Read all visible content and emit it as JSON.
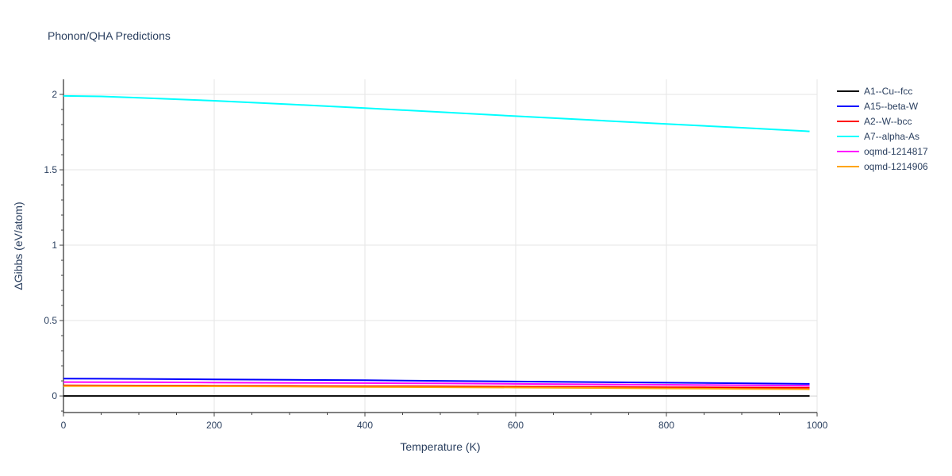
{
  "chart_data": {
    "type": "line",
    "title": "Phonon/QHA Predictions",
    "xlabel": "Temperature (K)",
    "ylabel": "ΔGibbs (eV/atom)",
    "xlim": [
      0,
      1000
    ],
    "ylim": [
      -0.11,
      2.1
    ],
    "xticks": [
      0,
      200,
      400,
      600,
      800,
      1000
    ],
    "yticks": [
      0,
      0.5,
      1,
      1.5,
      2
    ],
    "xtick_labels": [
      "0",
      "200",
      "400",
      "600",
      "800",
      "1000"
    ],
    "ytick_labels": [
      "0",
      "0.5",
      "1",
      "1.5",
      "2"
    ],
    "grid": true,
    "legend_position": "right",
    "series": [
      {
        "name": "A1--Cu--fcc",
        "color": "#000000",
        "x": [
          0,
          100,
          200,
          300,
          400,
          500,
          600,
          700,
          800,
          900,
          990
        ],
        "y": [
          0,
          0,
          0,
          0,
          0,
          0,
          0,
          0,
          0,
          0,
          0
        ]
      },
      {
        "name": "A15--beta-W",
        "color": "#0000ff",
        "x": [
          0,
          100,
          200,
          300,
          400,
          500,
          600,
          700,
          800,
          900,
          990
        ],
        "y": [
          0.115,
          0.113,
          0.11,
          0.107,
          0.104,
          0.1,
          0.096,
          0.092,
          0.088,
          0.084,
          0.08
        ]
      },
      {
        "name": "A2--W--bcc",
        "color": "#ff0000",
        "x": [
          0,
          100,
          200,
          300,
          400,
          500,
          600,
          700,
          800,
          900,
          990
        ],
        "y": [
          0.07,
          0.069,
          0.068,
          0.067,
          0.065,
          0.064,
          0.062,
          0.06,
          0.058,
          0.056,
          0.054
        ]
      },
      {
        "name": "A7--alpha-As",
        "color": "#00ffff",
        "x": [
          0,
          50,
          100,
          200,
          300,
          400,
          500,
          600,
          700,
          800,
          900,
          990
        ],
        "y": [
          1.99,
          1.987,
          1.978,
          1.958,
          1.934,
          1.909,
          1.883,
          1.856,
          1.83,
          1.804,
          1.779,
          1.755
        ]
      },
      {
        "name": "oqmd-1214817",
        "color": "#ff00ff",
        "x": [
          0,
          100,
          200,
          300,
          400,
          500,
          600,
          700,
          800,
          900,
          990
        ],
        "y": [
          0.092,
          0.091,
          0.089,
          0.087,
          0.085,
          0.083,
          0.08,
          0.077,
          0.074,
          0.071,
          0.068
        ]
      },
      {
        "name": "oqmd-1214906",
        "color": "#ffa500",
        "x": [
          0,
          100,
          200,
          300,
          400,
          500,
          600,
          700,
          800,
          900,
          990
        ],
        "y": [
          0.066,
          0.065,
          0.064,
          0.062,
          0.06,
          0.058,
          0.056,
          0.053,
          0.05,
          0.047,
          0.044
        ]
      }
    ]
  }
}
